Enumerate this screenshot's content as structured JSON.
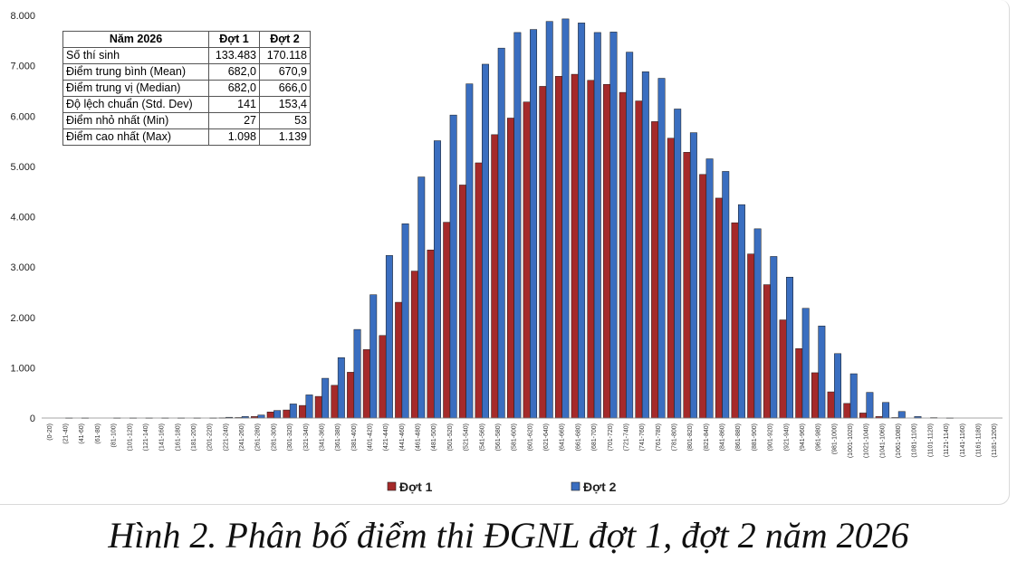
{
  "caption": "Hình 2. Phân bố điểm thi ĐGNL đợt 1, đợt 2 năm 2026",
  "stats_table": {
    "header": [
      "Năm 2026",
      "Đợt 1",
      "Đợt 2"
    ],
    "rows": [
      {
        "label": "Số thí sinh",
        "d1": "133.483",
        "d2": "170.118"
      },
      {
        "label": "Điểm trung bình (Mean)",
        "d1": "682,0",
        "d2": "670,9"
      },
      {
        "label": "Điểm trung vị (Median)",
        "d1": "682,0",
        "d2": "666,0"
      },
      {
        "label": "Độ lệch chuẩn (Std. Dev)",
        "d1": "141",
        "d2": "153,4"
      },
      {
        "label": "Điểm nhỏ nhất (Min)",
        "d1": "27",
        "d2": "53"
      },
      {
        "label": "Điểm cao nhất (Max)",
        "d1": "1.098",
        "d2": "1.139"
      }
    ]
  },
  "chart_data": {
    "type": "bar",
    "ylim": [
      0,
      8000
    ],
    "yticks": [
      0,
      1000,
      2000,
      3000,
      4000,
      5000,
      6000,
      7000,
      8000
    ],
    "ytick_labels": [
      "0",
      "1.000",
      "2.000",
      "3.000",
      "4.000",
      "5.000",
      "6.000",
      "7.000",
      "8.000"
    ],
    "grid": false,
    "legend_position": "bottom-center",
    "categories": [
      "(0-20)",
      "(21-40)",
      "(41-60)",
      "(61-80)",
      "(81-100)",
      "(101-120)",
      "(121-140)",
      "(141-160)",
      "(161-180)",
      "(181-200)",
      "(201-220)",
      "(221-240)",
      "(241-260)",
      "(261-280)",
      "(281-300)",
      "(301-320)",
      "(321-340)",
      "(341-360)",
      "(361-380)",
      "(381-400)",
      "(401-420)",
      "(421-440)",
      "(441-460)",
      "(461-480)",
      "(481-500)",
      "(501-520)",
      "(521-540)",
      "(541-560)",
      "(561-580)",
      "(581-600)",
      "(601-620)",
      "(621-640)",
      "(641-660)",
      "(661-680)",
      "(681-700)",
      "(701-720)",
      "(721-740)",
      "(741-760)",
      "(761-780)",
      "(781-800)",
      "(801-820)",
      "(821-840)",
      "(841-860)",
      "(861-880)",
      "(881-900)",
      "(901-920)",
      "(921-940)",
      "(941-960)",
      "(961-980)",
      "(981-1000)",
      "(1001-1020)",
      "(1021-1040)",
      "(1041-1060)",
      "(1061-1080)",
      "(1081-1100)",
      "(1101-1120)",
      "(1121-1140)",
      "(1141-1160)",
      "(1161-1180)",
      "(1181-1200)"
    ],
    "series": [
      {
        "name": "Đợt 1",
        "color": "#a52a2a",
        "values": [
          0,
          0,
          0,
          0,
          0,
          0,
          0,
          0,
          0,
          0,
          0,
          5,
          10,
          30,
          120,
          160,
          250,
          430,
          650,
          910,
          1360,
          1640,
          2300,
          2920,
          3340,
          3890,
          4630,
          5070,
          5630,
          5960,
          6280,
          6590,
          6790,
          6830,
          6710,
          6630,
          6470,
          6300,
          5890,
          5560,
          5280,
          4840,
          4370,
          3880,
          3260,
          2650,
          1950,
          1380,
          900,
          520,
          290,
          100,
          30,
          10,
          0,
          0,
          0,
          0,
          0,
          0
        ]
      },
      {
        "name": "Đợt 2",
        "color": "#3a6ec0",
        "values": [
          0,
          3,
          3,
          0,
          3,
          3,
          3,
          3,
          3,
          3,
          3,
          15,
          30,
          60,
          150,
          280,
          460,
          790,
          1200,
          1760,
          2450,
          3230,
          3860,
          4790,
          5510,
          6020,
          6640,
          7030,
          7350,
          7660,
          7720,
          7880,
          7930,
          7850,
          7660,
          7670,
          7270,
          6880,
          6750,
          6140,
          5670,
          5150,
          4900,
          4240,
          3760,
          3210,
          2800,
          2180,
          1830,
          1280,
          880,
          510,
          310,
          130,
          30,
          8,
          3,
          0,
          0,
          0
        ]
      }
    ]
  }
}
